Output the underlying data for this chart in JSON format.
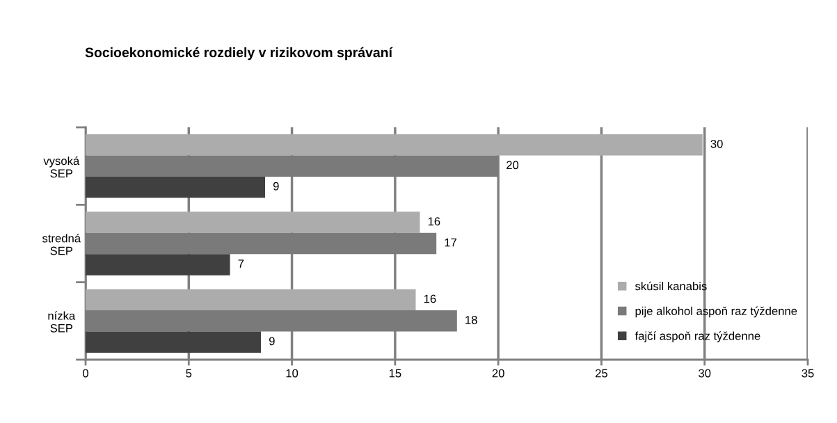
{
  "chart_data": {
    "type": "bar",
    "orientation": "horizontal",
    "title": "Socioekonomické rozdiely v rizikovom správaní",
    "categories": [
      "vysoká\nSEP",
      "stredná\nSEP",
      "nízka\nSEP"
    ],
    "series": [
      {
        "name": "skúsil kanabis",
        "color": "#acacac",
        "values": [
          29.9,
          16.2,
          16.0
        ],
        "value_labels": [
          "30",
          "16",
          "16"
        ]
      },
      {
        "name": "pije alkohol aspoň raz týždenne",
        "color": "#7a7a7a",
        "values": [
          20.0,
          17.0,
          18.0
        ],
        "value_labels": [
          "20",
          "17",
          "18"
        ]
      },
      {
        "name": "fajčí aspoň raz týždenne",
        "color": "#404040",
        "values": [
          8.7,
          7.0,
          8.5
        ],
        "value_labels": [
          "9",
          "7",
          "9"
        ]
      }
    ],
    "xlim": [
      0,
      35
    ],
    "xticks": [
      0,
      5,
      10,
      15,
      20,
      25,
      30,
      35
    ],
    "grid": "x",
    "legend": "bottom right"
  }
}
